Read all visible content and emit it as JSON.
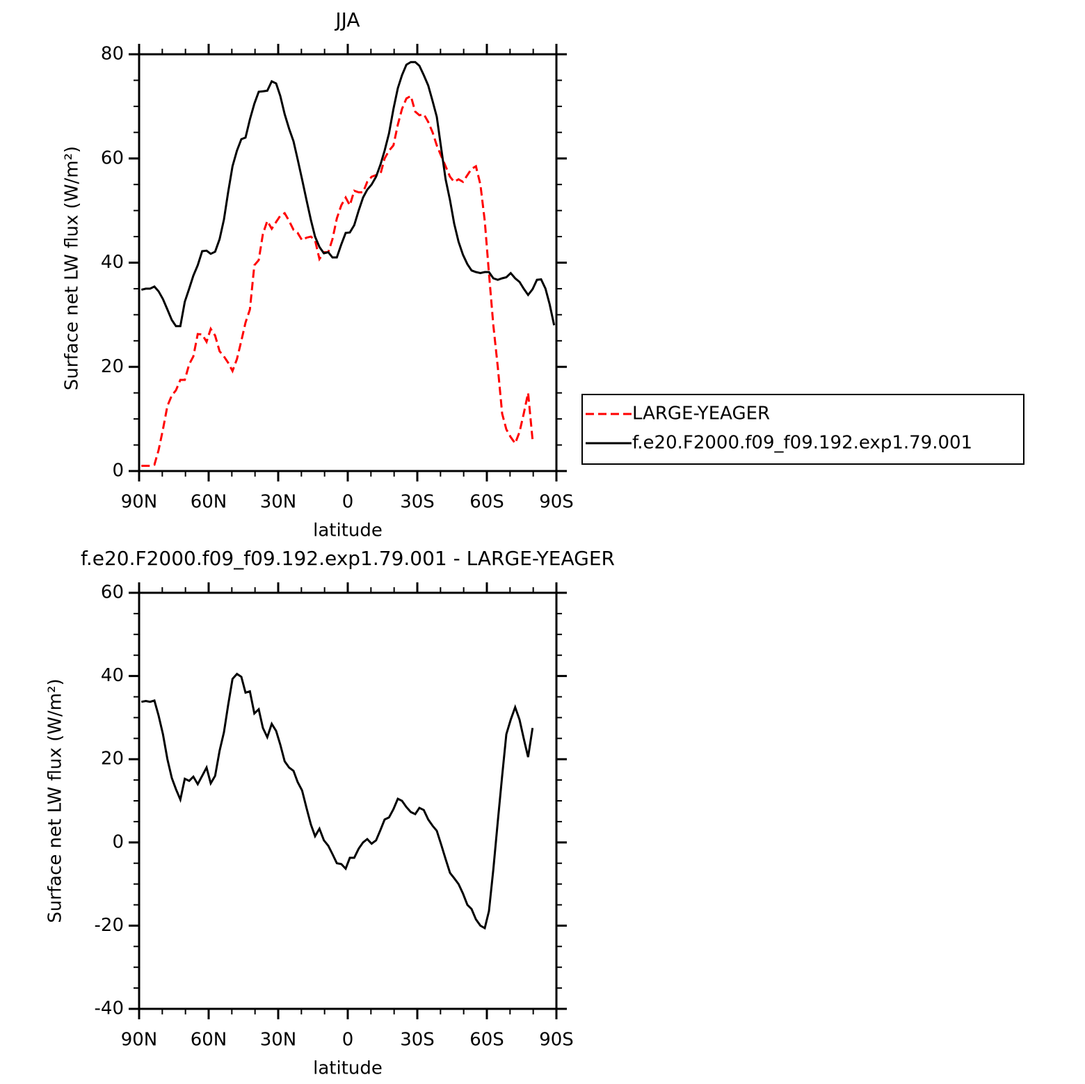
{
  "chart_data": [
    {
      "type": "line",
      "title": "JJA",
      "xlabel": "latitude",
      "ylabel": "Surface net LW flux (W/m²)",
      "legend": "right",
      "xlim": [
        90,
        -90
      ],
      "ylim": [
        0,
        80
      ],
      "xticks": [
        {
          "value": 90,
          "label": "90N"
        },
        {
          "value": 60,
          "label": "60N"
        },
        {
          "value": 30,
          "label": "30N"
        },
        0,
        {
          "value": -30,
          "label": "30S"
        },
        {
          "value": -60,
          "label": "60S"
        },
        {
          "value": -90,
          "label": "90S"
        }
      ],
      "yticks": [
        0,
        20,
        40,
        60,
        80
      ],
      "xminorticks": [
        80,
        70,
        50,
        40,
        20,
        10,
        -10,
        -20,
        -40,
        -50,
        -70,
        -80
      ],
      "yminorticks": [
        5,
        10,
        15,
        25,
        30,
        35,
        45,
        50,
        55,
        65,
        70,
        75
      ],
      "x": [
        89,
        87.1,
        85.3,
        83.4,
        81.6,
        79.7,
        77.8,
        75.9,
        74.1,
        72.2,
        70.3,
        68.4,
        66.6,
        64.7,
        62.8,
        60.9,
        59.1,
        57.2,
        55.3,
        53.4,
        51.6,
        49.7,
        47.8,
        45.9,
        44.1,
        42.2,
        40.3,
        38.4,
        36.6,
        34.7,
        32.8,
        30.9,
        29.1,
        27.2,
        25.3,
        23.4,
        21.6,
        19.7,
        17.8,
        15.9,
        14.1,
        12.2,
        10.3,
        8.4,
        6.6,
        4.7,
        2.8,
        0.9,
        -0.9,
        -2.8,
        -4.7,
        -6.6,
        -8.4,
        -10.3,
        -12.2,
        -14.1,
        -15.9,
        -17.8,
        -19.7,
        -21.6,
        -23.4,
        -25.3,
        -27.2,
        -29.1,
        -30.9,
        -32.8,
        -34.7,
        -36.6,
        -38.4,
        -40.3,
        -42.2,
        -44.1,
        -45.9,
        -47.8,
        -49.7,
        -51.6,
        -53.4,
        -55.3,
        -57.2,
        -59.1,
        -60.9,
        -62.8,
        -64.7,
        -66.6,
        -68.4,
        -70.3,
        -72.2,
        -74.1,
        -75.9,
        -77.8,
        -79.7,
        -81.6,
        -83.4,
        -85.3,
        -87.1,
        -89
      ],
      "series": [
        {
          "name": "LARGE-YEAGER",
          "color": "#ff0000",
          "line_style": "dashed",
          "values": [
            1.0,
            1.0,
            1.0,
            1.2,
            4.0,
            8.0,
            12.5,
            14.5,
            15.5,
            17.5,
            17.5,
            20.5,
            22.0,
            26.3,
            26.2,
            24.8,
            27.3,
            26.0,
            23.0,
            22.0,
            20.8,
            19.2,
            21.5,
            25.0,
            28.5,
            31.0,
            39.5,
            40.5,
            45.5,
            48.0,
            46.5,
            47.8,
            49.0,
            49.5,
            48.0,
            46.3,
            45.7,
            44.3,
            44.8,
            45.0,
            44.3,
            40.7,
            42.0,
            42.0,
            44.5,
            48.5,
            51.0,
            52.5,
            51.0,
            53.8,
            53.5,
            53.5,
            55.5,
            56.5,
            56.8,
            57.0,
            60.0,
            61.5,
            62.5,
            66.5,
            69.5,
            71.5,
            72.0,
            69.0,
            68.3,
            68.5,
            67.0,
            65.0,
            62.5,
            60.5,
            58.5,
            56.5,
            55.5,
            56.0,
            55.5,
            56.8,
            58.0,
            58.5,
            55.0,
            48.0,
            38.0,
            28.0,
            20.0,
            11.0,
            8.0,
            6.5,
            5.3,
            7.5,
            11.0,
            15.0,
            6.0,
            null,
            null,
            null,
            null,
            null
          ]
        },
        {
          "name": "f.e20.F2000.f09_f09.192.exp1.79.001",
          "color": "#000000",
          "line_style": "solid",
          "values": [
            34.8,
            35.0,
            35.0,
            35.4,
            34.5,
            33.0,
            31.0,
            29.0,
            27.8,
            27.8,
            32.5,
            35.0,
            37.5,
            39.5,
            42.2,
            42.3,
            41.7,
            42.1,
            44.5,
            48.3,
            53.5,
            58.5,
            61.5,
            63.7,
            64.0,
            67.5,
            70.5,
            72.8,
            72.9,
            73.0,
            74.8,
            74.4,
            72.0,
            68.5,
            65.7,
            63.3,
            59.8,
            56.0,
            52.0,
            48.2,
            45.0,
            43.0,
            41.8,
            42.0,
            41.0,
            41.0,
            43.5,
            45.7,
            45.8,
            47.2,
            50.0,
            52.5,
            54.0,
            55.0,
            56.5,
            58.8,
            61.5,
            64.8,
            69.5,
            73.5,
            76.0,
            78.0,
            78.5,
            78.5,
            77.8,
            76.0,
            74.0,
            71.0,
            68.0,
            62.0,
            56.0,
            52.0,
            47.5,
            44.0,
            41.5,
            39.7,
            38.5,
            38.2,
            38.0,
            38.2,
            38.2,
            37.0,
            36.7,
            37.0,
            37.2,
            38.0,
            37.0,
            36.3,
            35.0,
            33.8,
            34.9,
            36.7,
            36.8,
            35.0,
            32.0,
            28.0
          ]
        }
      ]
    },
    {
      "type": "line",
      "title": "f.e20.F2000.f09_f09.192.exp1.79.001 - LARGE-YEAGER",
      "xlabel": "latitude",
      "ylabel": "Surface net LW flux (W/m²)",
      "xlim": [
        90,
        -90
      ],
      "ylim": [
        -40,
        60
      ],
      "color": "#000000",
      "xticks": [
        {
          "value": 90,
          "label": "90N"
        },
        {
          "value": 60,
          "label": "60N"
        },
        {
          "value": 30,
          "label": "30N"
        },
        0,
        {
          "value": -30,
          "label": "30S"
        },
        {
          "value": -60,
          "label": "60S"
        },
        {
          "value": -90,
          "label": "90S"
        }
      ],
      "yticks": [
        -40,
        -20,
        0,
        20,
        40,
        60
      ],
      "xminorticks": [
        80,
        70,
        50,
        40,
        20,
        10,
        -10,
        -20,
        -40,
        -50,
        -70,
        -80
      ],
      "yminorticks": [
        -35,
        -30,
        -25,
        -15,
        -10,
        -5,
        5,
        10,
        15,
        25,
        30,
        35,
        45,
        50,
        55
      ],
      "x": [
        89,
        87.1,
        85.3,
        83.4,
        81.6,
        79.7,
        77.8,
        75.9,
        74.1,
        72.2,
        70.3,
        68.4,
        66.6,
        64.7,
        62.8,
        60.9,
        59.1,
        57.2,
        55.3,
        53.4,
        51.6,
        49.7,
        47.8,
        45.9,
        44.1,
        42.2,
        40.3,
        38.4,
        36.6,
        34.7,
        32.8,
        30.9,
        29.1,
        27.2,
        25.3,
        23.4,
        21.6,
        19.7,
        17.8,
        15.9,
        14.1,
        12.2,
        10.3,
        8.4,
        6.6,
        4.7,
        2.8,
        0.9,
        -0.9,
        -2.8,
        -4.7,
        -6.6,
        -8.4,
        -10.3,
        -12.2,
        -14.1,
        -15.9,
        -17.8,
        -19.7,
        -21.6,
        -23.4,
        -25.3,
        -27.2,
        -29.1,
        -30.9,
        -32.8,
        -34.7,
        -36.6,
        -38.4,
        -40.3,
        -42.2,
        -44.1,
        -45.9,
        -47.8,
        -49.7,
        -51.6,
        -53.4,
        -55.3,
        -57.2,
        -59.1,
        -60.9,
        -62.8,
        -64.7,
        -66.6,
        -68.4,
        -70.3,
        -72.2,
        -74.1,
        -75.9,
        -77.8,
        -79.7,
        -81.6,
        -83.4,
        -85.3,
        -87.1,
        -89
      ],
      "values": [
        33.8,
        34.0,
        33.8,
        34.1,
        30.5,
        26.0,
        20.0,
        15.5,
        12.8,
        10.3,
        15.3,
        14.8,
        15.8,
        14.0,
        16.0,
        18.0,
        14.2,
        16.0,
        22.0,
        26.5,
        33.0,
        39.3,
        40.5,
        39.8,
        36.0,
        36.3,
        31.0,
        32.0,
        27.5,
        25.3,
        28.5,
        26.8,
        23.5,
        19.5,
        18.0,
        17.2,
        14.5,
        12.5,
        8.3,
        4.3,
        1.5,
        3.3,
        0.5,
        -0.8,
        -2.8,
        -5.0,
        -5.2,
        -6.3,
        -3.7,
        -3.7,
        -1.5,
        0.0,
        0.8,
        -0.3,
        0.5,
        3.0,
        5.5,
        6.0,
        8.0,
        10.5,
        10.0,
        8.5,
        7.3,
        6.8,
        8.3,
        7.8,
        5.5,
        4.0,
        2.8,
        -0.5,
        -4.0,
        -7.3,
        -8.6,
        -10.0,
        -12.3,
        -15.0,
        -16.0,
        -18.5,
        -20.0,
        -20.6,
        -16.5,
        -6.5,
        5.0,
        16.0,
        26.0,
        29.5,
        32.5,
        29.5,
        25.0,
        20.5,
        27.5,
        null,
        null,
        null,
        null,
        null
      ]
    }
  ]
}
